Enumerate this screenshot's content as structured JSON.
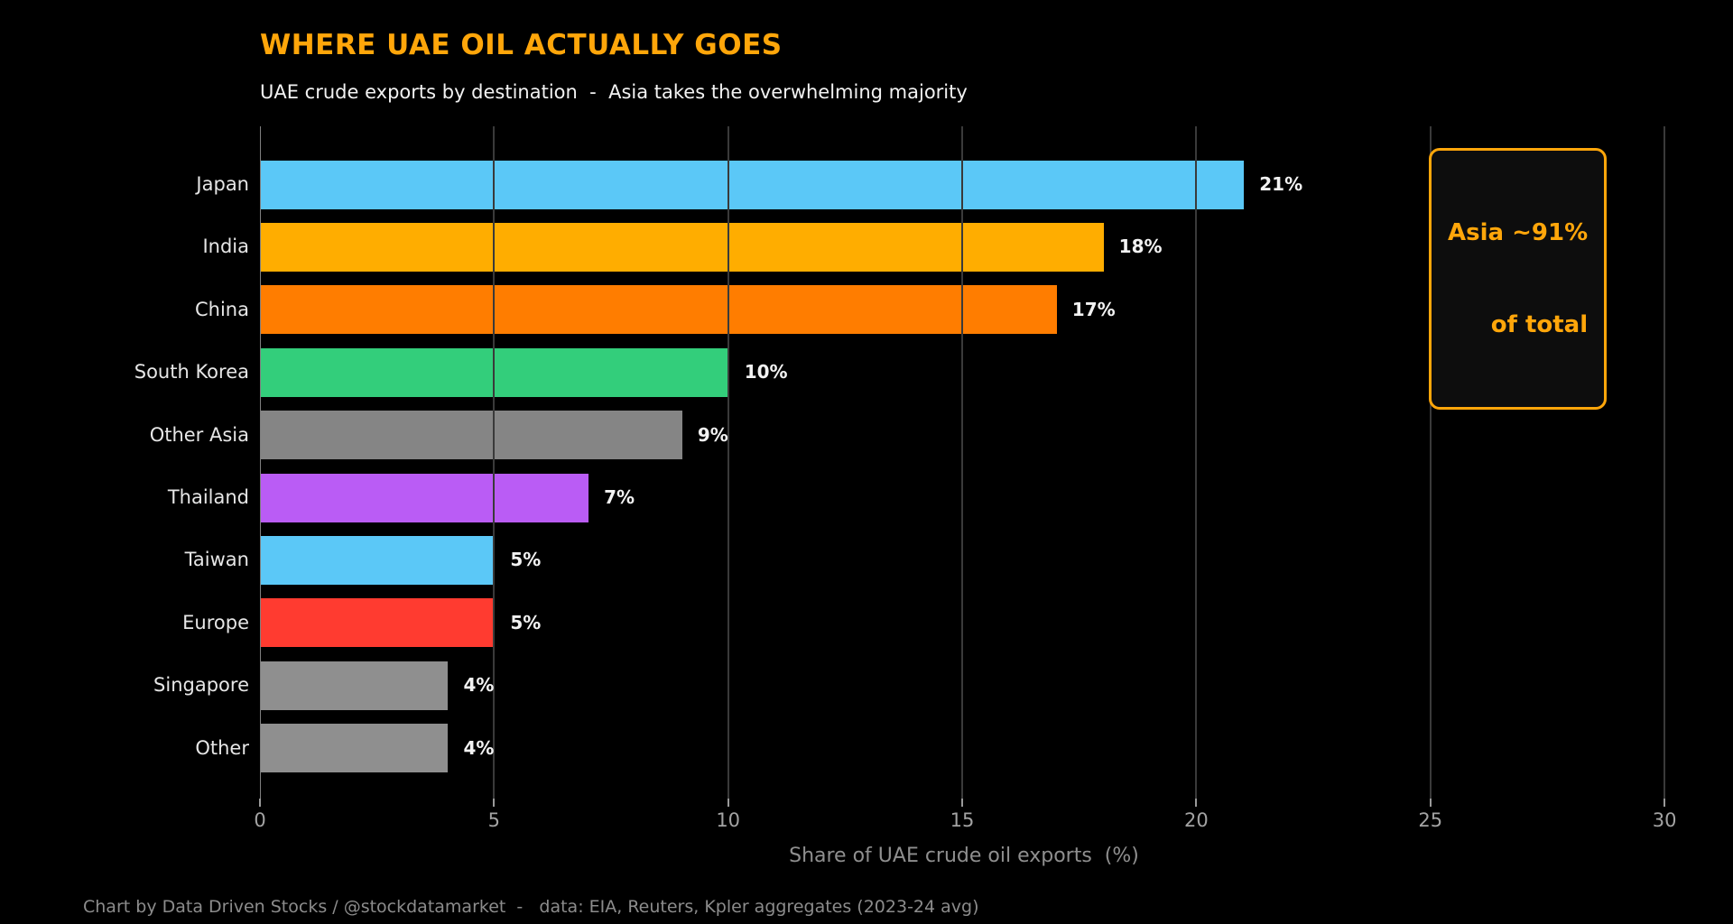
{
  "title": "WHERE UAE OIL ACTUALLY GOES",
  "subtitle": "UAE crude exports by destination  -  Asia takes the overwhelming majority",
  "annotation": {
    "line1": "Asia ~91%",
    "line2": "of total"
  },
  "xlabel": "Share of UAE crude oil exports  (%)",
  "footer": "Chart by Data Driven Stocks / @stockdatamarket  -   data: EIA, Reuters, Kpler aggregates (2023-24 avg)",
  "colors": {
    "background": "#000000",
    "accent_orange": "#FFA60A",
    "gridline": "#3A3A3A",
    "axis_spine": "#7F7F7F",
    "tick_label": "#A3A3A3",
    "category_label": "#E6E6E6",
    "value_label": "#F2F2F2",
    "subtitle_text": "#F2F2F2",
    "muted_text": "#8C8C8C"
  },
  "chart_data": {
    "type": "bar",
    "orientation": "horizontal",
    "title": "WHERE UAE OIL ACTUALLY GOES",
    "subtitle": "UAE crude exports by destination  -  Asia takes the overwhelming majority",
    "xlabel": "Share of UAE crude oil exports  (%)",
    "categories": [
      "Japan",
      "India",
      "China",
      "South Korea",
      "Other Asia",
      "Thailand",
      "Taiwan",
      "Europe",
      "Singapore",
      "Other"
    ],
    "values": [
      21,
      18,
      17,
      10,
      9,
      7,
      5,
      5,
      4,
      4
    ],
    "value_labels": [
      "21%",
      "18%",
      "17%",
      "10%",
      "9%",
      "7%",
      "5%",
      "5%",
      "4%",
      "4%"
    ],
    "bar_colors": [
      "#5BC8F7",
      "#FFAD00",
      "#FF7D00",
      "#33CE7B",
      "#858585",
      "#BA5CF5",
      "#5BC8F7",
      "#FF3B30",
      "#8F8F8F",
      "#8F8F8F"
    ],
    "xlim": [
      0,
      30.1
    ],
    "xticks": [
      0,
      5,
      10,
      15,
      20,
      25,
      30
    ],
    "grid": true,
    "legend": false,
    "annotation_text": "Asia ~91%\nof total"
  }
}
